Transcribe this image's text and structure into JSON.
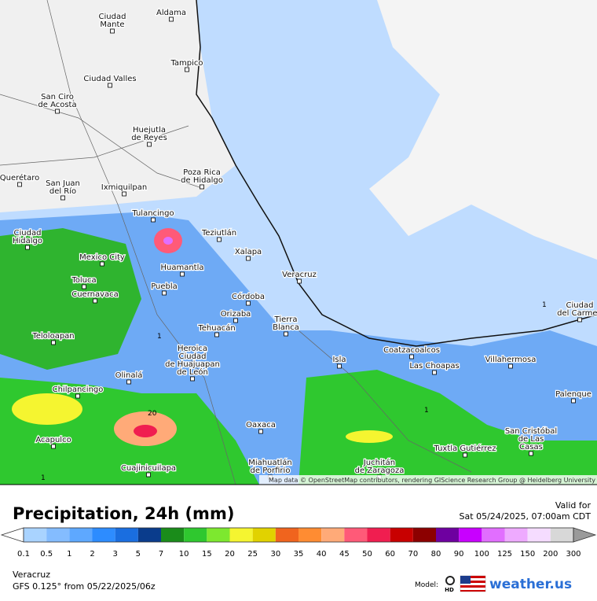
{
  "map": {
    "cities": [
      [
        "Ciudad",
        "Mante"
      ],
      [
        "Aldama"
      ],
      [
        "Tampico"
      ],
      [
        "Ciudad Valles"
      ],
      [
        "San Ciro",
        "de Acosta"
      ],
      [
        "Huejutla",
        "de Reyes"
      ],
      [
        "Poza Rica",
        "de Hidalgo"
      ],
      [
        "Querétaro"
      ],
      [
        "San Juan",
        "del Río"
      ],
      [
        "Ixmiquilpan"
      ],
      [
        "Tulancingo"
      ],
      [
        "Teziutlán"
      ],
      [
        "Ciudad",
        "Hidalgo"
      ],
      [
        "Mexico City"
      ],
      [
        "Xalapa"
      ],
      [
        "Huamantla"
      ],
      [
        "Toluca"
      ],
      [
        "Puebla"
      ],
      [
        "Cuernavaca"
      ],
      [
        "Veracruz"
      ],
      [
        "Córdoba"
      ],
      [
        "Orizaba"
      ],
      [
        "Tierra",
        "Blanca"
      ],
      [
        "Tehuacán"
      ],
      [
        "Teloloapan"
      ],
      [
        "Heroica",
        "Ciudad",
        "de Huajuapan",
        "de León"
      ],
      [
        "Olinalá"
      ],
      [
        "Coatzacoalcos"
      ],
      [
        "Isla"
      ],
      [
        "Las Choapas"
      ],
      [
        "Villahermosa"
      ],
      [
        "Ciudad",
        "del Carmen"
      ],
      [
        "Chilpancingo"
      ],
      [
        "Palenque"
      ],
      [
        "Acapulco"
      ],
      [
        "Oaxaca"
      ],
      [
        "San Cristóbal",
        "de Las",
        "Casas"
      ],
      [
        "Tuxtla Gutiérrez"
      ],
      [
        "Cuajinicuilapa"
      ],
      [
        "Miahuatlán",
        "de Porfirio"
      ],
      [
        "Juchitán",
        "de Zaragoza"
      ]
    ],
    "contour_labels": [
      "1",
      "1",
      "1",
      "20",
      "1"
    ],
    "attribution": "Map data © OpenStreetMap contributors, rendering GIScience Research Group @ Heidelberg University"
  },
  "footer": {
    "title": "Precipitation, 24h (mm)",
    "valid_label": "Valid for",
    "valid_time": "Sat 05/24/2025, 07:00am CDT",
    "region": "Veracruz",
    "model_run": "GFS 0.125° from  05/22/2025/06z",
    "model_label": "Model:",
    "hd": "HD",
    "brand": "weather.us"
  },
  "legend": {
    "labels": [
      "0.1",
      "0.5",
      "1",
      "2",
      "3",
      "5",
      "7",
      "10",
      "15",
      "20",
      "25",
      "30",
      "35",
      "40",
      "45",
      "50",
      "60",
      "70",
      "80",
      "90",
      "100",
      "125",
      "150",
      "200",
      "300"
    ],
    "colors": [
      "#a9d3ff",
      "#84bcff",
      "#5ea8ff",
      "#2d8cff",
      "#1a6ee0",
      "#0a3c8c",
      "#1a8c1a",
      "#2fc82f",
      "#7de82f",
      "#f5f530",
      "#e1d200",
      "#f0641e",
      "#ff8c32",
      "#ffaa78",
      "#ff5a78",
      "#f01e50",
      "#c80000",
      "#8c0000",
      "#6e00a0",
      "#c800ff",
      "#e16eff",
      "#eeaaff",
      "#f5dcff",
      "#d8d8d8"
    ]
  }
}
